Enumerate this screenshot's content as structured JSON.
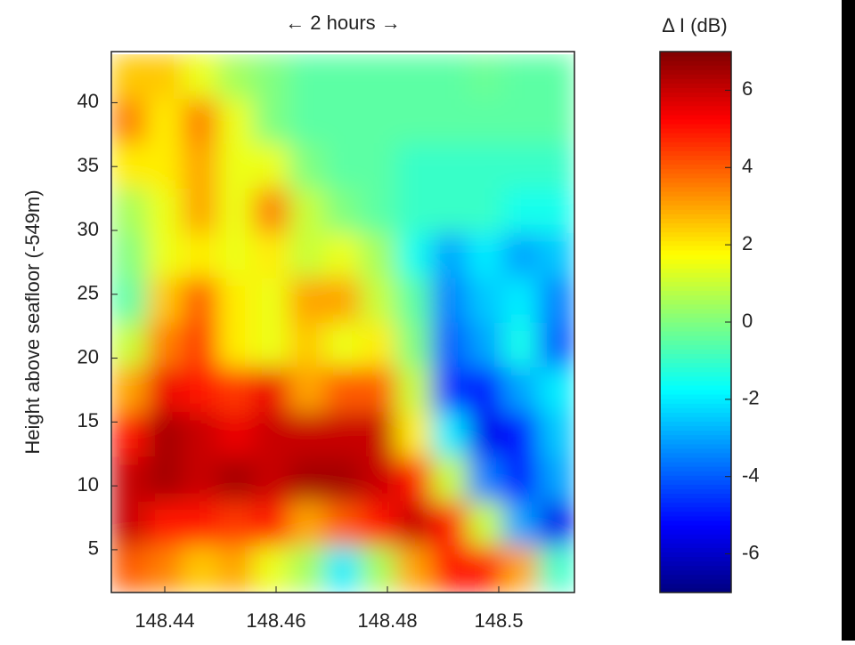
{
  "chart_data": {
    "type": "heatmap",
    "annotation": "← 2 hours →",
    "ylabel": "Height above seafloor (-549m)",
    "colorbar_label": "Δ I (dB)",
    "colormap": "jet",
    "x": [
      148.4336,
      148.44,
      148.4464,
      148.4528,
      148.4592,
      148.4656,
      148.472,
      148.4784,
      148.4848,
      148.4912,
      148.4976,
      148.504,
      148.5104
    ],
    "y": [
      42,
      38.5,
      35,
      31.5,
      28,
      24.5,
      21,
      17.5,
      14,
      10.5,
      7,
      3.5
    ],
    "values": [
      [
        2.5,
        2.5,
        1.5,
        0.5,
        0,
        -0.5,
        -0.5,
        -0.5,
        -0.5,
        -0.5,
        -0.3,
        -0.5,
        -0.5
      ],
      [
        3.5,
        2,
        3.5,
        1.5,
        0,
        -0.5,
        -0.5,
        -0.5,
        -0.5,
        -0.5,
        -0.5,
        -0.5,
        -0.5
      ],
      [
        2,
        2,
        3,
        1.5,
        1.5,
        0,
        -0.5,
        -0.5,
        -1,
        -1,
        -1,
        -1,
        -1
      ],
      [
        0.5,
        1.5,
        3,
        1.5,
        3.5,
        1,
        0,
        -0.5,
        -1,
        -1,
        -1,
        -1.5,
        -1.5
      ],
      [
        0,
        1.5,
        2,
        1.5,
        2,
        1,
        1.5,
        0.5,
        -1.5,
        -3,
        -2,
        -3,
        -2.5
      ],
      [
        -0.5,
        2.5,
        4,
        2,
        1.5,
        3,
        3,
        1,
        -0.5,
        -3.5,
        -2.5,
        -2,
        -3.5
      ],
      [
        1,
        3.5,
        4.5,
        2,
        1.5,
        2.5,
        1.5,
        2,
        0,
        -4,
        -3,
        -1.5,
        -4
      ],
      [
        3,
        5.5,
        5,
        4.5,
        5.5,
        3,
        4,
        4,
        1,
        -4.5,
        -5,
        -3,
        -2
      ],
      [
        5,
        6.5,
        6,
        5.5,
        6,
        6,
        6,
        6,
        2,
        -2,
        -5.5,
        -5,
        -2.5
      ],
      [
        6,
        6.5,
        6,
        6.5,
        6,
        6.5,
        6.5,
        6,
        5,
        1,
        -3.5,
        -5,
        -3
      ],
      [
        6,
        5,
        5,
        4.5,
        5,
        3,
        4,
        5,
        6,
        5,
        1,
        -3,
        -5.5
      ],
      [
        4,
        3.5,
        2.5,
        3,
        1.5,
        0.5,
        -2,
        0.5,
        3,
        5,
        5,
        3,
        -1
      ]
    ],
    "xlim": [
      148.4304,
      148.5136
    ],
    "ylim": [
      1.65,
      44
    ],
    "xticks": [
      148.44,
      148.46,
      148.48,
      148.5
    ],
    "yticks": [
      5,
      10,
      15,
      20,
      25,
      30,
      35,
      40
    ],
    "clim": [
      -7,
      7
    ],
    "cticks": [
      -6,
      -4,
      -2,
      0,
      2,
      4,
      6
    ]
  }
}
